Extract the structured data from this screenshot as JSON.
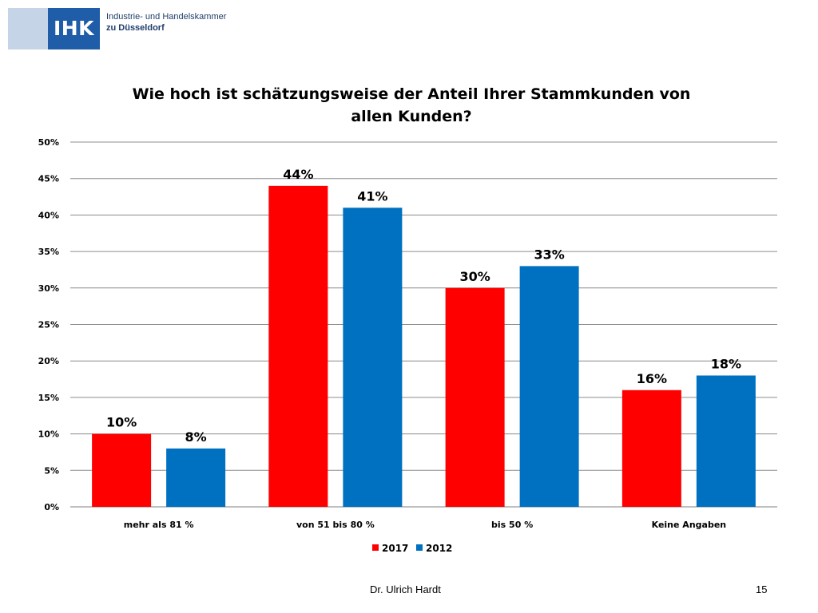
{
  "logo": {
    "name": "IHK",
    "line1": "Industrie- und Handelskammer",
    "line2": "zu Düsseldorf"
  },
  "footer": {
    "author": "Dr. Ulrich Hardt",
    "page": "15"
  },
  "chart_data": {
    "type": "bar",
    "title": "Wie hoch ist schätzungsweise der Anteil Ihrer Stammkunden von allen Kunden?",
    "xlabel": "",
    "ylabel": "",
    "categories": [
      "mehr als 81 %",
      "von 51 bis 80 %",
      "bis 50 %",
      "Keine Angaben"
    ],
    "series": [
      {
        "name": "2017",
        "color": "#ff0000",
        "values": [
          10,
          44,
          30,
          16
        ],
        "labels": [
          "10%",
          "44%",
          "30%",
          "16%"
        ]
      },
      {
        "name": "2012",
        "color": "#0070c0",
        "values": [
          8,
          41,
          33,
          18
        ],
        "labels": [
          "8%",
          "41%",
          "33%",
          "18%"
        ]
      }
    ],
    "ylim": [
      0,
      50
    ],
    "yticks": [
      0,
      5,
      10,
      15,
      20,
      25,
      30,
      35,
      40,
      45,
      50
    ],
    "ytick_labels": [
      "0%",
      "5%",
      "10%",
      "15%",
      "20%",
      "25%",
      "30%",
      "35%",
      "40%",
      "45%",
      "50%"
    ],
    "grid": true,
    "legend": "bottom-center"
  }
}
